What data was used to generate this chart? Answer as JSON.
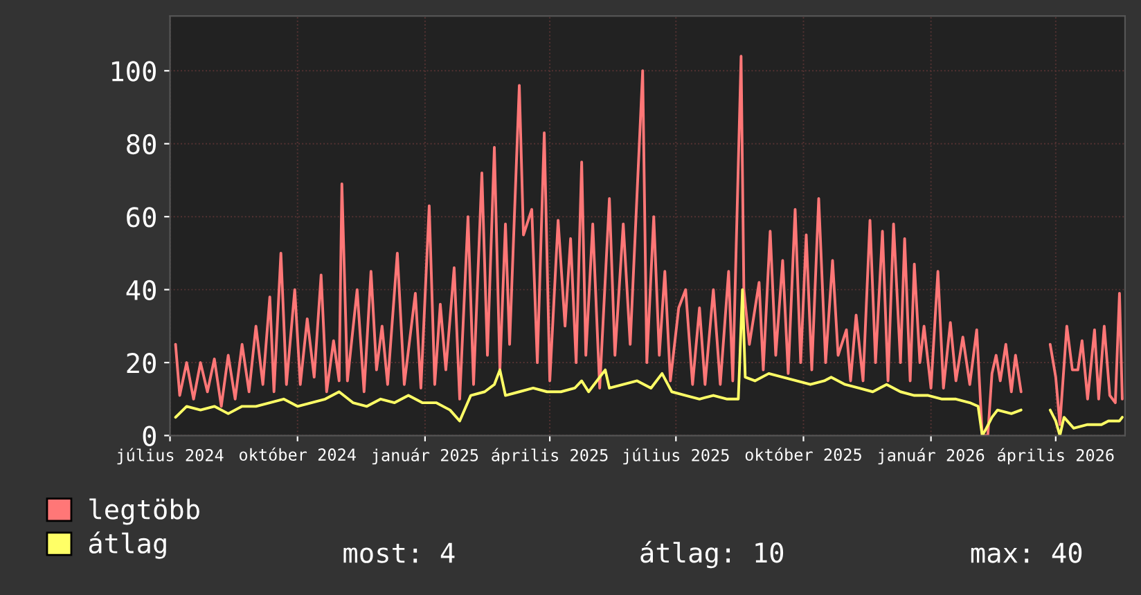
{
  "chart_data": {
    "type": "line",
    "xlim": [
      "2024-07-01",
      "2026-05-21"
    ],
    "ylim": [
      0,
      115
    ],
    "yticks": [
      0,
      20,
      40,
      60,
      80,
      100
    ],
    "xticks": [
      {
        "value": "2024-07-01",
        "label": "július 2024"
      },
      {
        "value": "2024-10-01",
        "label": "október 2024"
      },
      {
        "value": "2025-01-01",
        "label": "január 2025"
      },
      {
        "value": "2025-04-01",
        "label": "április 2025"
      },
      {
        "value": "2025-07-01",
        "label": "július 2025"
      },
      {
        "value": "2025-10-01",
        "label": "október 2025"
      },
      {
        "value": "2026-01-01",
        "label": "január 2026"
      },
      {
        "value": "2026-04-01",
        "label": "április 2026"
      }
    ],
    "grid": true,
    "legend": "bottom left",
    "marker": "none",
    "line_style": "solid",
    "annotations": [
      "most: 4",
      "átlag: 10",
      "max: 40"
    ],
    "series": [
      {
        "name": "legtöbb",
        "color": "#ff7777",
        "x": [
          "2024-07-05",
          "2024-07-08",
          "2024-07-13",
          "2024-07-18",
          "2024-07-23",
          "2024-07-28",
          "2024-08-02",
          "2024-08-07",
          "2024-08-12",
          "2024-08-17",
          "2024-08-22",
          "2024-08-27",
          "2024-09-01",
          "2024-09-06",
          "2024-09-11",
          "2024-09-14",
          "2024-09-19",
          "2024-09-23",
          "2024-09-29",
          "2024-10-03",
          "2024-10-08",
          "2024-10-13",
          "2024-10-18",
          "2024-10-22",
          "2024-10-27",
          "2024-10-31",
          "2024-11-02",
          "2024-11-06",
          "2024-11-13",
          "2024-11-18",
          "2024-11-23",
          "2024-11-27",
          "2024-12-01",
          "2024-12-05",
          "2024-12-12",
          "2024-12-17",
          "2024-12-25",
          "2024-12-29",
          "2025-01-04",
          "2025-01-08",
          "2025-01-12",
          "2025-01-16",
          "2025-01-22",
          "2025-01-26",
          "2025-02-01",
          "2025-02-05",
          "2025-02-11",
          "2025-02-15",
          "2025-02-20",
          "2025-02-24",
          "2025-02-28",
          "2025-03-03",
          "2025-03-10",
          "2025-03-13",
          "2025-03-19",
          "2025-03-23",
          "2025-03-28",
          "2025-04-01",
          "2025-04-07",
          "2025-04-12",
          "2025-04-16",
          "2025-04-20",
          "2025-04-24",
          "2025-04-27",
          "2025-05-02",
          "2025-05-07",
          "2025-05-14",
          "2025-05-18",
          "2025-05-24",
          "2025-05-29",
          "2025-06-07",
          "2025-06-10",
          "2025-06-15",
          "2025-06-19",
          "2025-06-23",
          "2025-06-27",
          "2025-07-03",
          "2025-07-08",
          "2025-07-13",
          "2025-07-18",
          "2025-07-22",
          "2025-07-28",
          "2025-08-02",
          "2025-08-08",
          "2025-08-11",
          "2025-08-17",
          "2025-08-19",
          "2025-08-23",
          "2025-08-30",
          "2025-09-02",
          "2025-09-07",
          "2025-09-11",
          "2025-09-16",
          "2025-09-20",
          "2025-09-25",
          "2025-09-29",
          "2025-10-03",
          "2025-10-07",
          "2025-10-12",
          "2025-10-17",
          "2025-10-22",
          "2025-10-26",
          "2025-11-01",
          "2025-11-04",
          "2025-11-08",
          "2025-11-13",
          "2025-11-18",
          "2025-11-22",
          "2025-11-27",
          "2025-12-01",
          "2025-12-05",
          "2025-12-10",
          "2025-12-13",
          "2025-12-17",
          "2025-12-20",
          "2025-12-24",
          "2025-12-27",
          "2026-01-01",
          "2026-01-06",
          "2026-01-10",
          "2026-01-15",
          "2026-01-19",
          "2026-01-24",
          "2026-01-29",
          "2026-02-03",
          "2026-02-07",
          "2026-02-11",
          "2026-02-14",
          "2026-02-17",
          "2026-02-20",
          "2026-02-24",
          "2026-02-28",
          "2026-03-03",
          "2026-03-07",
          "2026-03-18",
          "2026-03-28",
          "2026-04-01",
          "2026-04-04",
          "2026-04-09",
          "2026-04-13",
          "2026-04-17",
          "2026-04-20",
          "2026-04-24",
          "2026-04-29",
          "2026-05-02",
          "2026-05-06",
          "2026-05-10",
          "2026-05-14",
          "2026-05-17",
          "2026-05-19"
        ],
        "values": [
          25,
          11,
          20,
          10,
          20,
          12,
          21,
          8,
          22,
          10,
          25,
          12,
          30,
          14,
          38,
          12,
          50,
          14,
          40,
          14,
          32,
          16,
          44,
          12,
          26,
          15,
          69,
          15,
          40,
          12,
          45,
          18,
          30,
          14,
          50,
          14,
          39,
          13,
          63,
          14,
          36,
          18,
          46,
          10,
          60,
          14,
          72,
          22,
          79,
          18,
          58,
          25,
          96,
          55,
          62,
          20,
          83,
          15,
          59,
          30,
          54,
          20,
          75,
          22,
          58,
          13,
          65,
          22,
          58,
          25,
          100,
          20,
          60,
          22,
          45,
          15,
          35,
          40,
          14,
          35,
          14,
          40,
          14,
          45,
          15,
          104,
          40,
          25,
          42,
          18,
          56,
          22,
          48,
          17,
          62,
          20,
          55,
          18,
          65,
          20,
          48,
          22,
          29,
          15,
          33,
          15,
          59,
          20,
          56,
          15,
          58,
          20,
          54,
          15,
          47,
          20,
          30,
          13,
          45,
          13,
          31,
          15,
          27,
          14,
          29,
          0,
          0,
          17,
          22,
          15,
          25,
          12,
          22,
          12,
          null,
          25,
          16,
          3,
          30,
          18,
          18,
          26,
          10,
          29,
          10,
          30,
          11,
          9,
          39,
          10
        ]
      },
      {
        "name": "átlag",
        "color": "#ffff66",
        "x": [
          "2024-07-05",
          "2024-07-13",
          "2024-07-23",
          "2024-08-02",
          "2024-08-12",
          "2024-08-22",
          "2024-09-01",
          "2024-09-11",
          "2024-09-21",
          "2024-10-01",
          "2024-10-11",
          "2024-10-21",
          "2024-10-31",
          "2024-11-10",
          "2024-11-20",
          "2024-11-30",
          "2024-12-10",
          "2024-12-20",
          "2024-12-30",
          "2025-01-09",
          "2025-01-19",
          "2025-01-26",
          "2025-02-03",
          "2025-02-13",
          "2025-02-20",
          "2025-02-24",
          "2025-02-28",
          "2025-03-10",
          "2025-03-20",
          "2025-03-30",
          "2025-04-09",
          "2025-04-19",
          "2025-04-24",
          "2025-04-29",
          "2025-05-11",
          "2025-05-14",
          "2025-05-24",
          "2025-06-03",
          "2025-06-13",
          "2025-06-21",
          "2025-06-28",
          "2025-07-08",
          "2025-07-18",
          "2025-07-28",
          "2025-08-07",
          "2025-08-15",
          "2025-08-18",
          "2025-08-20",
          "2025-08-27",
          "2025-09-06",
          "2025-09-16",
          "2025-09-26",
          "2025-10-06",
          "2025-10-16",
          "2025-10-21",
          "2025-10-31",
          "2025-11-10",
          "2025-11-20",
          "2025-11-30",
          "2025-12-10",
          "2025-12-20",
          "2025-12-30",
          "2026-01-09",
          "2026-01-19",
          "2026-01-29",
          "2026-02-04",
          "2026-02-07",
          "2026-02-10",
          "2026-02-14",
          "2026-02-18",
          "2026-02-28",
          "2026-03-07",
          "2026-03-18",
          "2026-03-28",
          "2026-04-01",
          "2026-04-04",
          "2026-04-07",
          "2026-04-14",
          "2026-04-24",
          "2026-05-04",
          "2026-05-09",
          "2026-05-17",
          "2026-05-19"
        ],
        "values": [
          5,
          8,
          7,
          8,
          6,
          8,
          8,
          9,
          10,
          8,
          9,
          10,
          12,
          9,
          8,
          10,
          9,
          11,
          9,
          9,
          7,
          4,
          11,
          12,
          14,
          18,
          11,
          12,
          13,
          12,
          12,
          13,
          15,
          12,
          18,
          13,
          14,
          15,
          13,
          17,
          12,
          11,
          10,
          11,
          10,
          10,
          40,
          16,
          15,
          17,
          16,
          15,
          14,
          15,
          16,
          14,
          13,
          12,
          14,
          12,
          11,
          11,
          10,
          10,
          9,
          8,
          0,
          2,
          5,
          7,
          6,
          7,
          null,
          7,
          4,
          0,
          5,
          2,
          3,
          3,
          4,
          4,
          5
        ]
      }
    ]
  }
}
